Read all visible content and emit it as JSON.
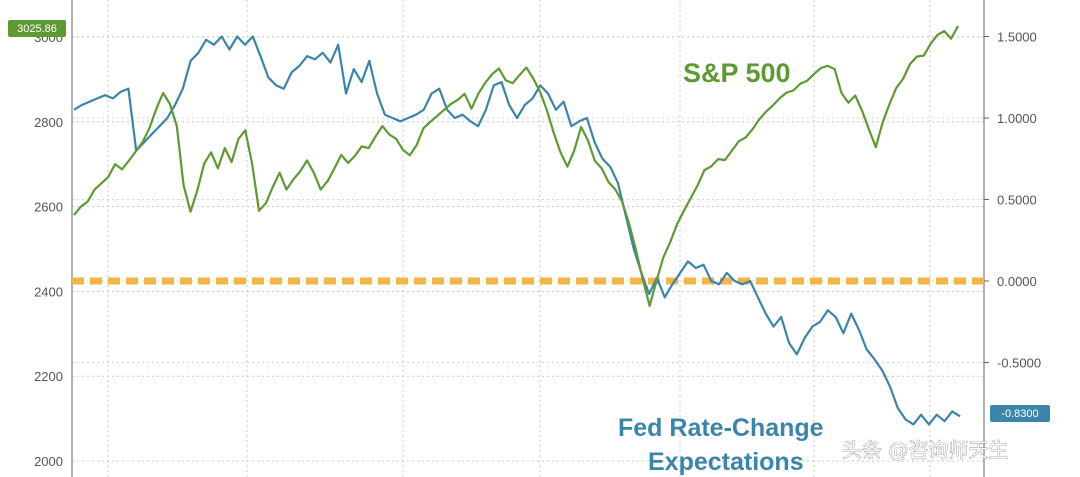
{
  "chart_data": {
    "type": "line",
    "title": "",
    "grid": true,
    "left_axis": {
      "ticks": [
        "2000",
        "2200",
        "2400",
        "2600",
        "2800",
        "3000"
      ],
      "range": [
        2000,
        3000
      ]
    },
    "right_axis": {
      "ticks": [
        "-0.5000",
        "0.0000",
        "0.5000",
        "1.0000",
        "1.5000"
      ],
      "range": [
        -1.1,
        1.5
      ]
    },
    "zero_line_value": 0.0,
    "zero_line_color": "#f2b54a",
    "series": [
      {
        "name": "S&P 500",
        "axis": "left",
        "color": "#5e9a32",
        "current_label": "3025.86",
        "values": [
          2580,
          2600,
          2612,
          2640,
          2655,
          2670,
          2700,
          2688,
          2708,
          2730,
          2752,
          2785,
          2830,
          2868,
          2842,
          2790,
          2650,
          2588,
          2638,
          2702,
          2728,
          2690,
          2738,
          2705,
          2760,
          2780,
          2700,
          2590,
          2608,
          2646,
          2680,
          2640,
          2664,
          2683,
          2709,
          2680,
          2640,
          2660,
          2690,
          2722,
          2703,
          2720,
          2742,
          2738,
          2765,
          2790,
          2770,
          2760,
          2734,
          2721,
          2745,
          2785,
          2800,
          2814,
          2828,
          2842,
          2852,
          2866,
          2831,
          2866,
          2892,
          2912,
          2926,
          2898,
          2891,
          2910,
          2928,
          2903,
          2871,
          2828,
          2774,
          2728,
          2694,
          2732,
          2788,
          2756,
          2708,
          2690,
          2658,
          2640,
          2611,
          2560,
          2498,
          2428,
          2366,
          2425,
          2480,
          2516,
          2558,
          2590,
          2620,
          2650,
          2686,
          2695,
          2712,
          2710,
          2732,
          2754,
          2763,
          2782,
          2806,
          2824,
          2839,
          2856,
          2869,
          2874,
          2890,
          2897,
          2913,
          2927,
          2932,
          2924,
          2868,
          2845,
          2862,
          2826,
          2782,
          2740,
          2798,
          2842,
          2880,
          2902,
          2936,
          2954,
          2956,
          2984,
          3005,
          3014,
          2996,
          3026
        ]
      },
      {
        "name": "Fed Rate-Change Expectations",
        "axis": "right",
        "color": "#3c85aa",
        "current_label": "-0.8300",
        "values": [
          1.05,
          1.08,
          1.1,
          1.12,
          1.14,
          1.12,
          1.16,
          1.18,
          0.8,
          0.85,
          0.9,
          0.95,
          1.0,
          1.08,
          1.18,
          1.35,
          1.4,
          1.48,
          1.45,
          1.5,
          1.42,
          1.5,
          1.45,
          1.5,
          1.38,
          1.25,
          1.2,
          1.18,
          1.28,
          1.32,
          1.38,
          1.36,
          1.4,
          1.34,
          1.45,
          1.15,
          1.3,
          1.22,
          1.35,
          1.15,
          1.02,
          1.0,
          0.98,
          1.0,
          1.02,
          1.05,
          1.15,
          1.18,
          1.05,
          1.0,
          1.02,
          0.98,
          0.95,
          1.05,
          1.2,
          1.22,
          1.08,
          1.0,
          1.08,
          1.12,
          1.2,
          1.15,
          1.05,
          1.1,
          0.95,
          0.98,
          1.0,
          0.85,
          0.75,
          0.7,
          0.6,
          0.4,
          0.2,
          0.05,
          -0.08,
          0.02,
          -0.1,
          -0.02,
          0.05,
          0.12,
          0.08,
          0.1,
          0.0,
          -0.02,
          0.05,
          0.0,
          -0.02,
          0.0,
          -0.1,
          -0.2,
          -0.28,
          -0.22,
          -0.38,
          -0.45,
          -0.35,
          -0.28,
          -0.25,
          -0.18,
          -0.22,
          -0.32,
          -0.2,
          -0.3,
          -0.42,
          -0.48,
          -0.55,
          -0.65,
          -0.78,
          -0.85,
          -0.88,
          -0.82,
          -0.88,
          -0.82,
          -0.86,
          -0.8,
          -0.83
        ]
      }
    ],
    "annotations": [
      "S&P 500",
      "Fed Rate-Change Expectations"
    ]
  },
  "labels": {
    "sp_label": "S&P 500",
    "fed_label_line1": "Fed Rate-Change",
    "fed_label_line2": "Expectations",
    "watermark": "头条 @咨询师天生"
  }
}
